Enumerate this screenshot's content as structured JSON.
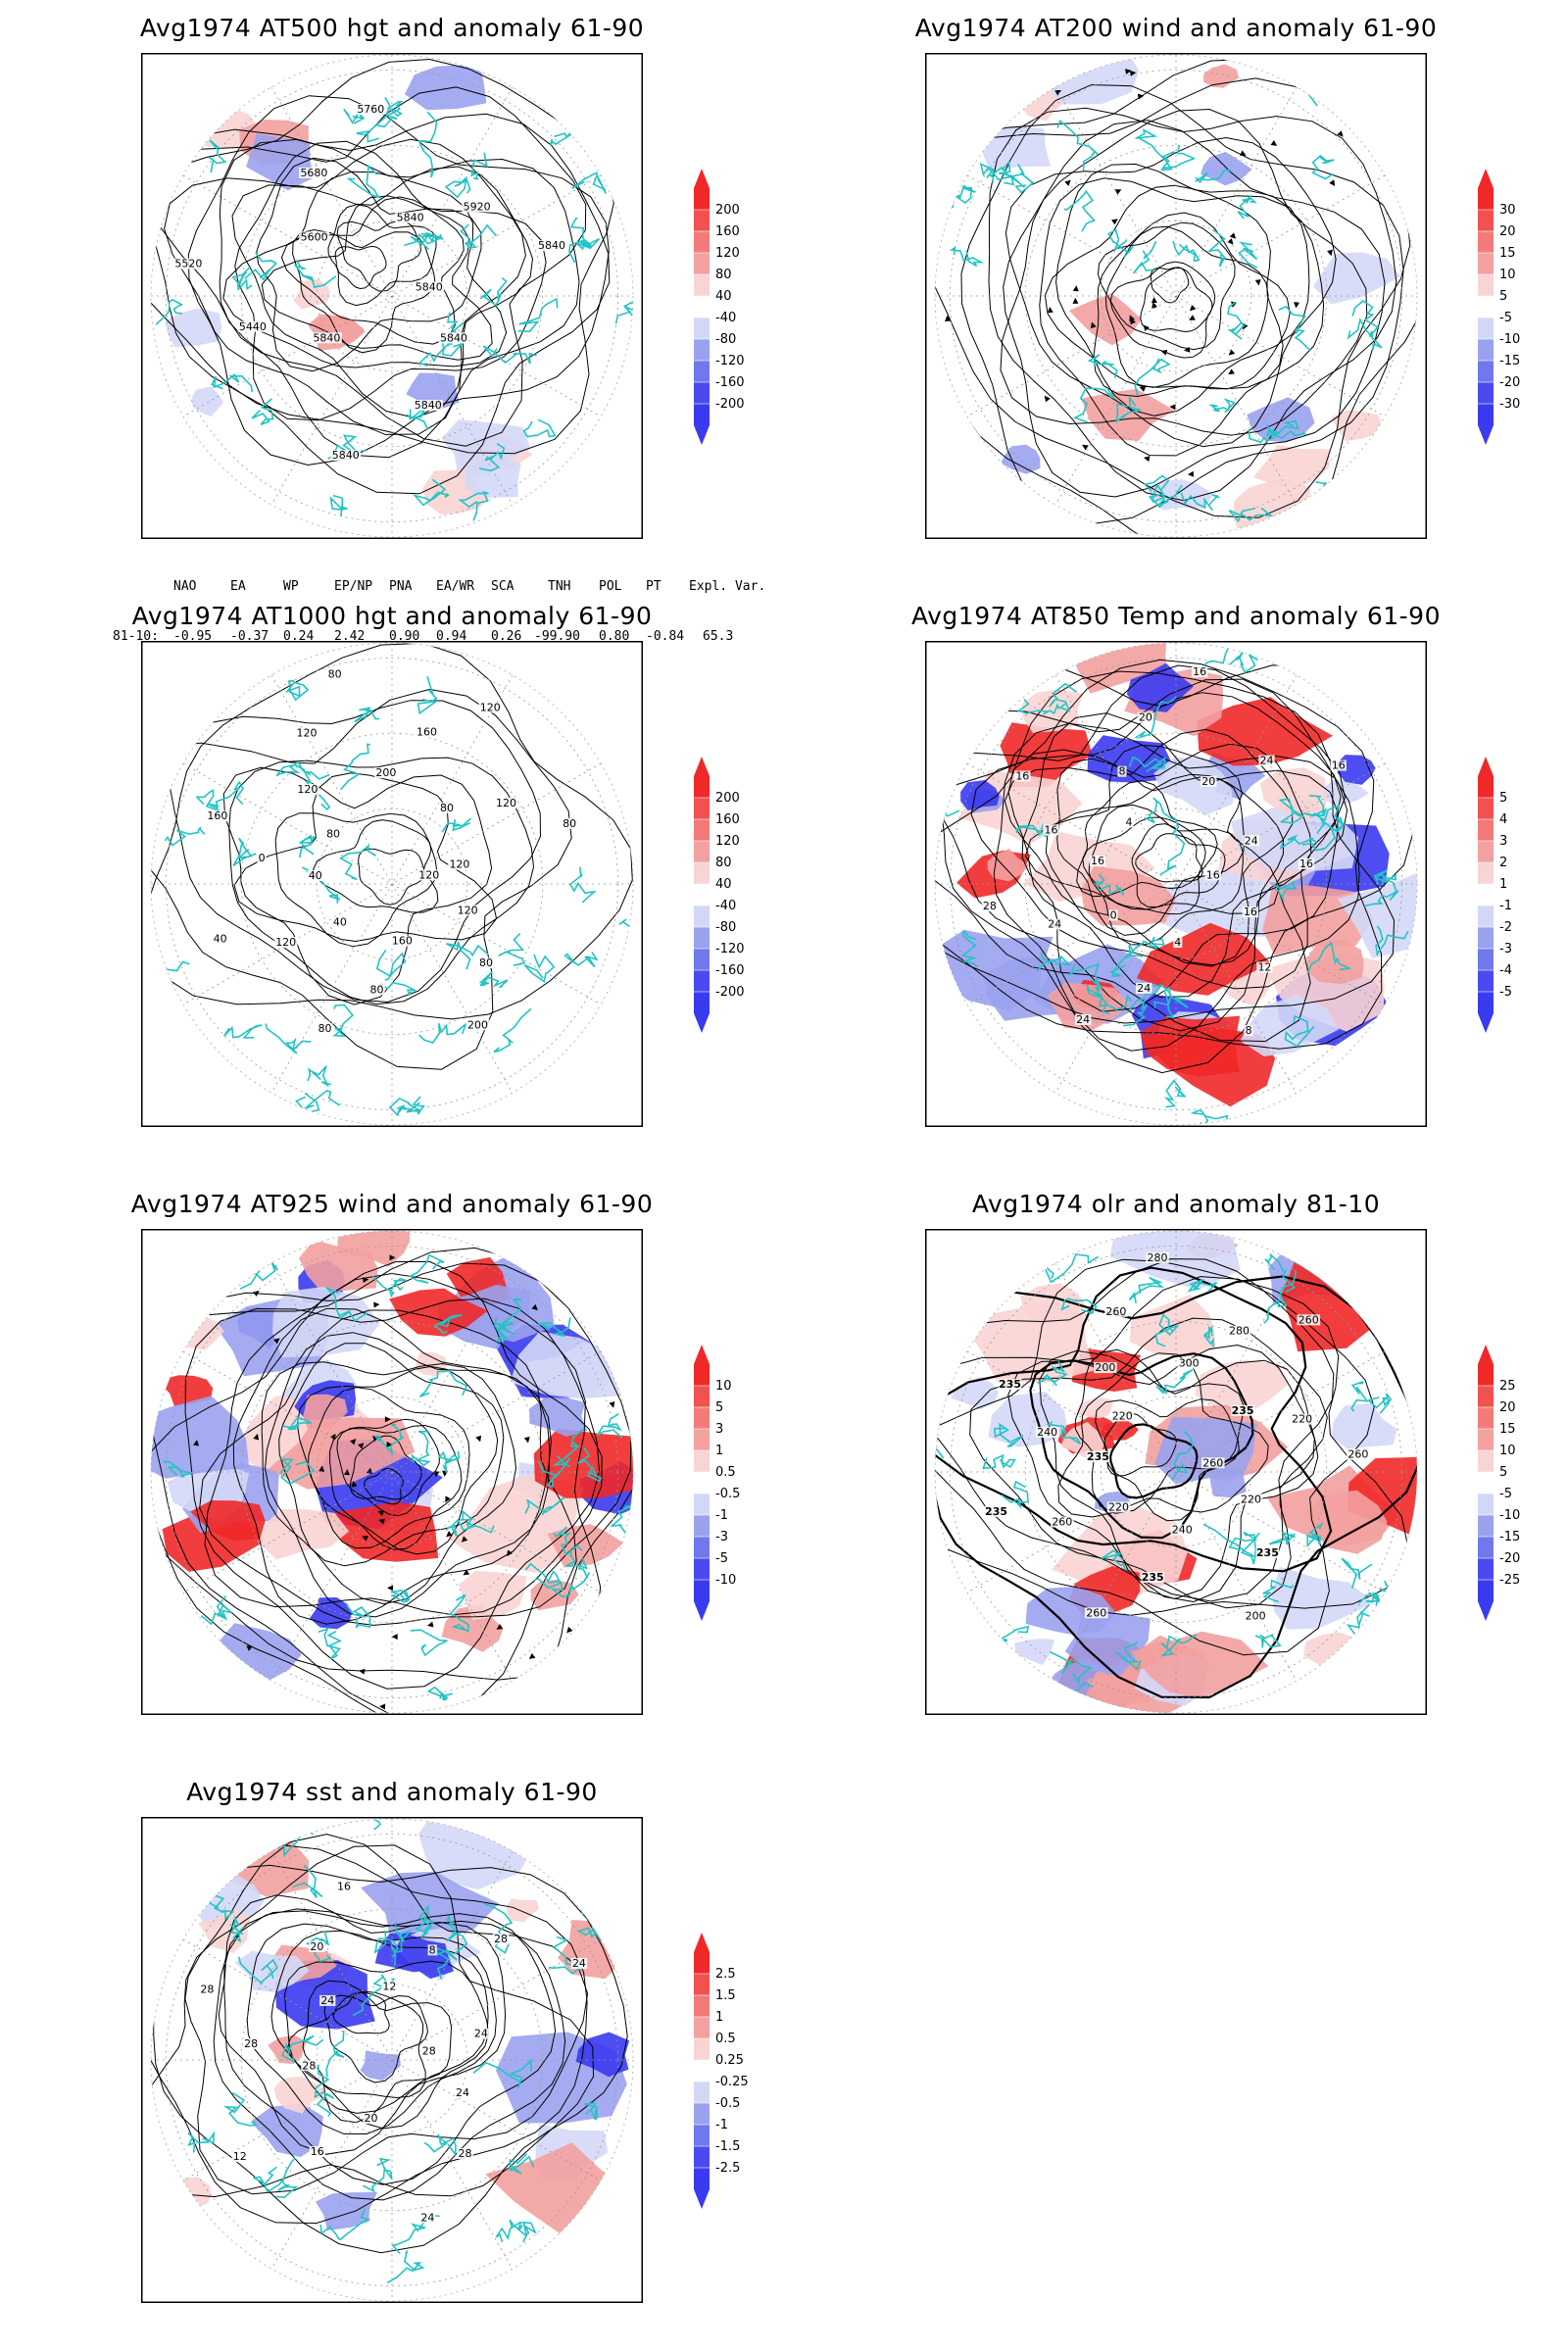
{
  "colors": {
    "coastline": "#21c4c4",
    "contour": "#000000",
    "pos_deep": "#f02828",
    "pos_mid": "#f3a0a0",
    "pos_light": "#f9d4d4",
    "neg_light": "#d4d8f7",
    "neg_mid": "#9aa2ee",
    "neg_deep": "#3a3af0",
    "frame": "#000000"
  },
  "panels": [
    {
      "id": "z500",
      "title": "Avg1974 AT500 hgt and anomaly 61-90",
      "legend": [
        "200",
        "160",
        "120",
        "80",
        "40",
        "-40",
        "-80",
        "-120",
        "-160",
        "-200"
      ],
      "contour_labels": [
        "5840",
        "5840",
        "5840",
        "5840",
        "5840",
        "5440",
        "5520",
        "5600",
        "5680",
        "5760",
        "5840",
        "5920",
        "5840"
      ],
      "shading": "weak",
      "kind": "hgt500"
    },
    {
      "id": "w200",
      "title": "Avg1974 AT200 wind and anomaly 61-90",
      "legend": [
        "30",
        "20",
        "15",
        "10",
        "5",
        "-5",
        "-10",
        "-15",
        "-20",
        "-30"
      ],
      "contour_labels": [],
      "shading": "weak",
      "kind": "wind"
    },
    {
      "id": "z1000",
      "title": "Avg1974 AT1000 hgt and anomaly 61-90",
      "legend": [
        "200",
        "160",
        "120",
        "80",
        "40",
        "-40",
        "-80",
        "-120",
        "-160",
        "-200"
      ],
      "contour_labels": [
        "120",
        "120",
        "80",
        "200",
        "160",
        "80",
        "80",
        "40",
        "120",
        "40",
        "40",
        "0",
        "160",
        "80",
        "120",
        "120",
        "80",
        "200",
        "160",
        "120",
        "80",
        "120",
        "80",
        "120"
      ],
      "shading": "none",
      "kind": "hgt1000"
    },
    {
      "id": "t850",
      "title": "Avg1974 AT850 Temp and anomaly 61-90",
      "legend": [
        "5",
        "4",
        "3",
        "2",
        "1",
        "-1",
        "-2",
        "-3",
        "-4",
        "-5"
      ],
      "contour_labels": [
        "16",
        "16",
        "12",
        "8",
        "4",
        "24",
        "24",
        "0",
        "24",
        "28",
        "16",
        "16",
        "16",
        "4",
        "8",
        "20",
        "16",
        "20",
        "24",
        "16",
        "24",
        "16"
      ],
      "shading": "strong",
      "kind": "temp"
    },
    {
      "id": "w925",
      "title": "Avg1974 AT925 wind and anomaly 61-90",
      "legend": [
        "10",
        "5",
        "3",
        "1",
        "0.5",
        "-0.5",
        "-1",
        "-3",
        "-5",
        "-10"
      ],
      "contour_labels": [],
      "shading": "strong",
      "kind": "wind"
    },
    {
      "id": "olr",
      "title": "Avg1974 olr and anomaly 81-10",
      "legend": [
        "25",
        "20",
        "15",
        "10",
        "5",
        "-5",
        "-10",
        "-15",
        "-20",
        "-25"
      ],
      "contour_labels": [
        "260",
        "220",
        "235",
        "200",
        "240",
        "235",
        "260",
        "220",
        "260",
        "235",
        "235",
        "240",
        "235",
        "220",
        "200",
        "260",
        "280",
        "300",
        "280",
        "260",
        "235",
        "220",
        "260"
      ],
      "shading": "olr",
      "kind": "olr"
    },
    {
      "id": "sst",
      "title": "Avg1974 sst and anomaly 61-90",
      "legend": [
        "2.5",
        "1.5",
        "1",
        "0.5",
        "0.25",
        "-0.25",
        "-0.5",
        "-1",
        "-1.5",
        "-2.5"
      ],
      "contour_labels": [
        "28",
        "24",
        "28",
        "24",
        "20",
        "16",
        "12",
        "28",
        "28",
        "28",
        "24",
        "20",
        "16",
        "12",
        "8",
        "28",
        "24",
        "24"
      ],
      "shading": "sst",
      "kind": "sst"
    }
  ],
  "teleconnections": {
    "headers": [
      "NAO",
      "EA",
      "WP",
      "EP/NP",
      "PNA",
      "EA/WR",
      "SCA",
      "TNH",
      "POL",
      "PT",
      "Expl. Var."
    ],
    "row_label": "81-10:",
    "values": [
      "-0.95",
      "-0.37",
      "0.24",
      "2.42",
      "0.90",
      "0.94",
      "0.26",
      "-99.90",
      "0.80",
      "-0.84",
      "65.3"
    ]
  }
}
